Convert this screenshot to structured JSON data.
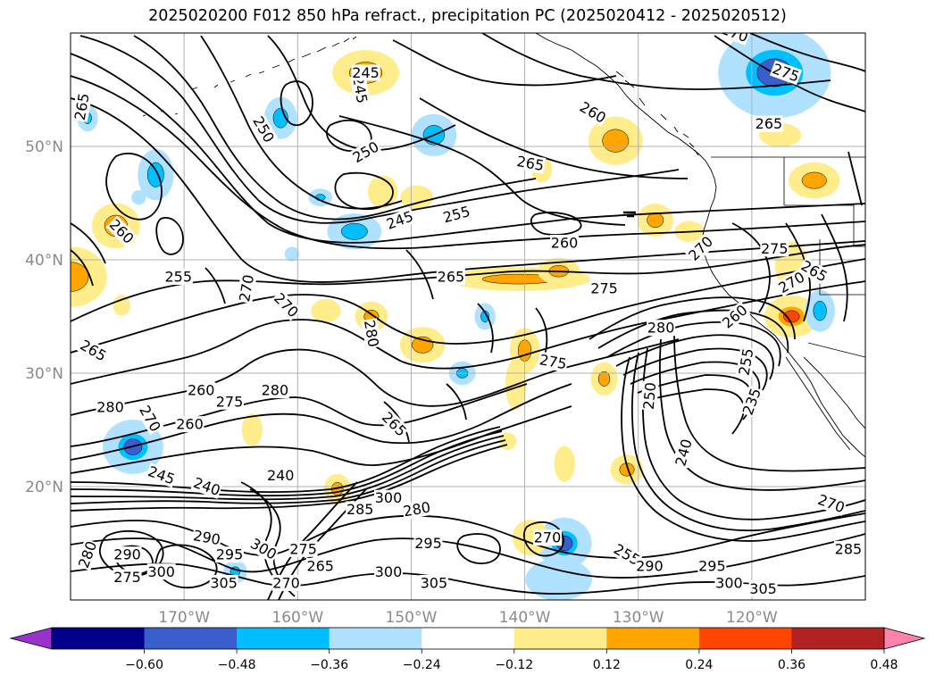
{
  "title": "2025020200 F012 850 hPa refract., precipitation PC (2025020412 - 2025020512)",
  "map": {
    "lon_range": [
      -180,
      -110
    ],
    "lat_range": [
      10,
      60
    ],
    "lat_ticks": [
      {
        "value": 50,
        "label": "50°N"
      },
      {
        "value": 40,
        "label": "40°N"
      },
      {
        "value": 30,
        "label": "30°N"
      },
      {
        "value": 20,
        "label": "20°N"
      }
    ],
    "lon_ticks": [
      {
        "value": -170,
        "label": "170°W"
      },
      {
        "value": -160,
        "label": "160°W"
      },
      {
        "value": -150,
        "label": "150°W"
      },
      {
        "value": -140,
        "label": "140°W"
      },
      {
        "value": -130,
        "label": "130°W"
      },
      {
        "value": -120,
        "label": "120°W"
      }
    ],
    "gridlines": true
  },
  "colorbar": {
    "ticks": [
      "−0.60",
      "−0.48",
      "−0.36",
      "−0.24",
      "−0.12",
      "0.12",
      "0.24",
      "0.36",
      "0.48",
      "0.60"
    ],
    "colors": [
      "#9932cc",
      "#00008b",
      "#3a5fcd",
      "#00bfff",
      "#b0e2ff",
      "#ffffff",
      "#ffec8b",
      "#ffa500",
      "#ff4500",
      "#b22222",
      "#ff82ab"
    ],
    "extend": "both"
  },
  "contour_labels": [
    {
      "text": "265",
      "lon": -179,
      "lat": 53.5,
      "rot": -80
    },
    {
      "text": "250",
      "lon": -163,
      "lat": 51.5,
      "rot": 60
    },
    {
      "text": "245",
      "lon": -154.5,
      "lat": 55,
      "rot": 80
    },
    {
      "text": "250",
      "lon": -154,
      "lat": 49.5,
      "rot": -30
    },
    {
      "text": "260",
      "lon": -134,
      "lat": 53,
      "rot": 30
    },
    {
      "text": "265",
      "lon": -139.5,
      "lat": 48.5,
      "rot": 10
    },
    {
      "text": "245",
      "lon": -151,
      "lat": 43.5,
      "rot": -20
    },
    {
      "text": "255",
      "lon": -146,
      "lat": 44,
      "rot": -15
    },
    {
      "text": "260",
      "lon": -136.5,
      "lat": 41.5,
      "rot": 0
    },
    {
      "text": "260",
      "lon": -175.5,
      "lat": 42.5,
      "rot": 45
    },
    {
      "text": "255",
      "lon": -170.5,
      "lat": 38.5,
      "rot": 0
    },
    {
      "text": "270",
      "lon": -164.5,
      "lat": 37.5,
      "rot": -80
    },
    {
      "text": "265",
      "lon": -146.5,
      "lat": 38.5,
      "rot": 0
    },
    {
      "text": "275",
      "lon": -133,
      "lat": 37.5,
      "rot": 0
    },
    {
      "text": "270",
      "lon": -124.5,
      "lat": 41,
      "rot": -45
    },
    {
      "text": "270",
      "lon": -161,
      "lat": 36,
      "rot": 45
    },
    {
      "text": "280",
      "lon": -153.5,
      "lat": 33.5,
      "rot": 80
    },
    {
      "text": "275",
      "lon": -137.5,
      "lat": 31,
      "rot": 10
    },
    {
      "text": "280",
      "lon": -128,
      "lat": 34,
      "rot": 0
    },
    {
      "text": "265",
      "lon": -178,
      "lat": 32,
      "rot": 30
    },
    {
      "text": "260",
      "lon": -168.5,
      "lat": 28.5,
      "rot": 0
    },
    {
      "text": "275",
      "lon": -166,
      "lat": 27.5,
      "rot": 0
    },
    {
      "text": "280",
      "lon": -162,
      "lat": 28.5,
      "rot": 0
    },
    {
      "text": "280",
      "lon": -176.5,
      "lat": 27,
      "rot": 0
    },
    {
      "text": "260",
      "lon": -169.5,
      "lat": 25.5,
      "rot": 0
    },
    {
      "text": "270",
      "lon": -173,
      "lat": 26,
      "rot": 60
    },
    {
      "text": "265",
      "lon": -151.5,
      "lat": 25.5,
      "rot": 45
    },
    {
      "text": "240",
      "lon": -161.5,
      "lat": 21,
      "rot": 0
    },
    {
      "text": "245",
      "lon": -172,
      "lat": 21,
      "rot": 20
    },
    {
      "text": "240",
      "lon": -168,
      "lat": 20,
      "rot": 20
    },
    {
      "text": "290",
      "lon": -168,
      "lat": 15.5,
      "rot": 10
    },
    {
      "text": "290",
      "lon": -175,
      "lat": 14,
      "rot": 0
    },
    {
      "text": "280",
      "lon": -178.5,
      "lat": 14,
      "rot": -70
    },
    {
      "text": "275",
      "lon": -175,
      "lat": 12,
      "rot": 0
    },
    {
      "text": "300",
      "lon": -172,
      "lat": 12.5,
      "rot": 0
    },
    {
      "text": "295",
      "lon": -166,
      "lat": 14,
      "rot": 0
    },
    {
      "text": "300",
      "lon": -163,
      "lat": 14.5,
      "rot": 30
    },
    {
      "text": "305",
      "lon": -166.5,
      "lat": 11.5,
      "rot": 0
    },
    {
      "text": "300",
      "lon": -152,
      "lat": 19,
      "rot": 0
    },
    {
      "text": "285",
      "lon": -154.5,
      "lat": 18,
      "rot": 0
    },
    {
      "text": "280",
      "lon": -149.5,
      "lat": 18,
      "rot": -10
    },
    {
      "text": "265",
      "lon": -158,
      "lat": 13,
      "rot": 0
    },
    {
      "text": "275",
      "lon": -159.5,
      "lat": 14.5,
      "rot": 0
    },
    {
      "text": "270",
      "lon": -161,
      "lat": 11.5,
      "rot": 0
    },
    {
      "text": "295",
      "lon": -148.5,
      "lat": 15,
      "rot": 0
    },
    {
      "text": "300",
      "lon": -152,
      "lat": 12.5,
      "rot": 0
    },
    {
      "text": "305",
      "lon": -148,
      "lat": 11.5,
      "rot": 0
    },
    {
      "text": "270",
      "lon": -138,
      "lat": 15.5,
      "rot": 0
    },
    {
      "text": "255",
      "lon": -131,
      "lat": 14,
      "rot": 30
    },
    {
      "text": "290",
      "lon": -129,
      "lat": 13,
      "rot": 0
    },
    {
      "text": "295",
      "lon": -123.5,
      "lat": 13,
      "rot": 0
    },
    {
      "text": "300",
      "lon": -122,
      "lat": 11.5,
      "rot": 0
    },
    {
      "text": "305",
      "lon": -119,
      "lat": 11,
      "rot": 0
    },
    {
      "text": "285",
      "lon": -111.5,
      "lat": 14.5,
      "rot": 0
    },
    {
      "text": "270",
      "lon": -113,
      "lat": 18.5,
      "rot": 20
    },
    {
      "text": "250",
      "lon": -129,
      "lat": 28,
      "rot": -85
    },
    {
      "text": "240",
      "lon": -126,
      "lat": 23,
      "rot": -75
    },
    {
      "text": "255",
      "lon": -120.5,
      "lat": 31,
      "rot": -80
    },
    {
      "text": "235",
      "lon": -120,
      "lat": 27.5,
      "rot": -70
    },
    {
      "text": "260",
      "lon": -121.5,
      "lat": 35,
      "rot": -40
    },
    {
      "text": "275",
      "lon": -118,
      "lat": 41,
      "rot": 0
    },
    {
      "text": "270",
      "lon": -116.5,
      "lat": 38,
      "rot": -30
    },
    {
      "text": "265",
      "lon": -114.5,
      "lat": 39,
      "rot": 30
    },
    {
      "text": "275",
      "lon": -117,
      "lat": 56.5,
      "rot": 20
    },
    {
      "text": "265",
      "lon": -118.5,
      "lat": 52,
      "rot": 0
    },
    {
      "text": "270",
      "lon": -121.5,
      "lat": 60,
      "rot": 20
    },
    {
      "text": "245",
      "lon": -154,
      "lat": 56.5,
      "rot": 0
    }
  ],
  "precip_blobs": [
    {
      "lon": -180,
      "lat": 38.5,
      "rx": 2.2,
      "ry": 1.8,
      "level": "0.36"
    },
    {
      "lon": -176,
      "lat": 43,
      "rx": 1.4,
      "ry": 1.3,
      "level": "0.36"
    },
    {
      "lon": -172.5,
      "lat": 47.5,
      "rx": 1.0,
      "ry": 1.5,
      "level": "-0.36"
    },
    {
      "lon": -178.5,
      "lat": 52.5,
      "rx": 0.5,
      "ry": 0.7,
      "level": "-0.36"
    },
    {
      "lon": -161.5,
      "lat": 52.5,
      "rx": 0.9,
      "ry": 1.2,
      "level": "-0.36"
    },
    {
      "lon": -154,
      "lat": 56.5,
      "rx": 2.0,
      "ry": 1.3,
      "level": "0.36"
    },
    {
      "lon": -148,
      "lat": 51,
      "rx": 1.3,
      "ry": 1.2,
      "level": "-0.36"
    },
    {
      "lon": -152.5,
      "lat": 46,
      "rx": 0.8,
      "ry": 0.9,
      "level": "0.24"
    },
    {
      "lon": -149.5,
      "lat": 45.5,
      "rx": 0.9,
      "ry": 0.6,
      "level": "0.24"
    },
    {
      "lon": -155,
      "lat": 42.5,
      "rx": 1.6,
      "ry": 1.0,
      "level": "-0.36"
    },
    {
      "lon": -132,
      "lat": 50.5,
      "rx": 1.6,
      "ry": 1.4,
      "level": "0.36"
    },
    {
      "lon": -128.5,
      "lat": 43.5,
      "rx": 1.0,
      "ry": 0.9,
      "level": "0.36"
    },
    {
      "lon": -114.5,
      "lat": 47,
      "rx": 1.5,
      "ry": 1.0,
      "level": "0.36"
    },
    {
      "lon": -117.5,
      "lat": 51,
      "rx": 1.2,
      "ry": 0.6,
      "level": "0.24"
    },
    {
      "lon": -118,
      "lat": 56.5,
      "rx": 3.5,
      "ry": 2.8,
      "level": "-0.48"
    },
    {
      "lon": -140.5,
      "lat": 38.3,
      "rx": 4.5,
      "ry": 0.6,
      "level": "0.36"
    },
    {
      "lon": -137,
      "lat": 39,
      "rx": 1.2,
      "ry": 0.7,
      "level": "0.36"
    },
    {
      "lon": -175.5,
      "lat": 36,
      "rx": 0.4,
      "ry": 0.5,
      "level": "0.24"
    },
    {
      "lon": -153.5,
      "lat": 35,
      "rx": 0.9,
      "ry": 0.8,
      "level": "0.36"
    },
    {
      "lon": -157.5,
      "lat": 35.5,
      "rx": 0.8,
      "ry": 0.6,
      "level": "0.24"
    },
    {
      "lon": -149,
      "lat": 32.5,
      "rx": 1.3,
      "ry": 1.0,
      "level": "0.36"
    },
    {
      "lon": -143.5,
      "lat": 35,
      "rx": 0.5,
      "ry": 0.7,
      "level": "-0.36"
    },
    {
      "lon": -140,
      "lat": 32,
      "rx": 0.8,
      "ry": 1.3,
      "level": "0.36"
    },
    {
      "lon": -140.8,
      "lat": 29,
      "rx": 0.5,
      "ry": 1.5,
      "level": "0.24"
    },
    {
      "lon": -145.5,
      "lat": 30,
      "rx": 0.7,
      "ry": 0.6,
      "level": "-0.36"
    },
    {
      "lon": -133,
      "lat": 29.5,
      "rx": 0.7,
      "ry": 0.9,
      "level": "0.36"
    },
    {
      "lon": -116.5,
      "lat": 35,
      "rx": 1.6,
      "ry": 1.2,
      "level": "0.48"
    },
    {
      "lon": -114,
      "lat": 35.5,
      "rx": 0.8,
      "ry": 1.2,
      "level": "-0.36"
    },
    {
      "lon": -116.5,
      "lat": 39.5,
      "rx": 0.9,
      "ry": 1.4,
      "level": "0.24"
    },
    {
      "lon": -174.5,
      "lat": 23.5,
      "rx": 1.8,
      "ry": 1.6,
      "level": "-0.48"
    },
    {
      "lon": -164,
      "lat": 25,
      "rx": 0.5,
      "ry": 0.9,
      "level": "0.24"
    },
    {
      "lon": -156.5,
      "lat": 19.8,
      "rx": 0.7,
      "ry": 0.8,
      "level": "0.36"
    },
    {
      "lon": -136.5,
      "lat": 22,
      "rx": 0.5,
      "ry": 1.0,
      "level": "0.24"
    },
    {
      "lon": -131,
      "lat": 21.5,
      "rx": 0.9,
      "ry": 0.8,
      "level": "0.36"
    },
    {
      "lon": -136.5,
      "lat": 15,
      "rx": 1.6,
      "ry": 1.5,
      "level": "-0.48"
    },
    {
      "lon": -137,
      "lat": 11.8,
      "rx": 2.0,
      "ry": 1.2,
      "level": "-0.24"
    },
    {
      "lon": -139.5,
      "lat": 15.5,
      "rx": 1.0,
      "ry": 1.0,
      "level": "0.24"
    },
    {
      "lon": -165.5,
      "lat": 12.5,
      "rx": 0.6,
      "ry": 0.6,
      "level": "-0.36"
    },
    {
      "lon": -158,
      "lat": 45.5,
      "rx": 0.6,
      "ry": 0.4,
      "level": "-0.36"
    },
    {
      "lon": -138.5,
      "lat": 48,
      "rx": 0.5,
      "ry": 0.7,
      "level": "0.24"
    },
    {
      "lon": -125.5,
      "lat": 42.5,
      "rx": 0.8,
      "ry": 0.5,
      "level": "0.24"
    },
    {
      "lon": -141.5,
      "lat": 24,
      "rx": 0.4,
      "ry": 0.4,
      "level": "0.24"
    },
    {
      "lon": -160.5,
      "lat": 40.5,
      "rx": 0.3,
      "ry": 0.3,
      "level": "-0.24"
    },
    {
      "lon": -174,
      "lat": 45.5,
      "rx": 0.3,
      "ry": 0.3,
      "level": "-0.24"
    }
  ]
}
